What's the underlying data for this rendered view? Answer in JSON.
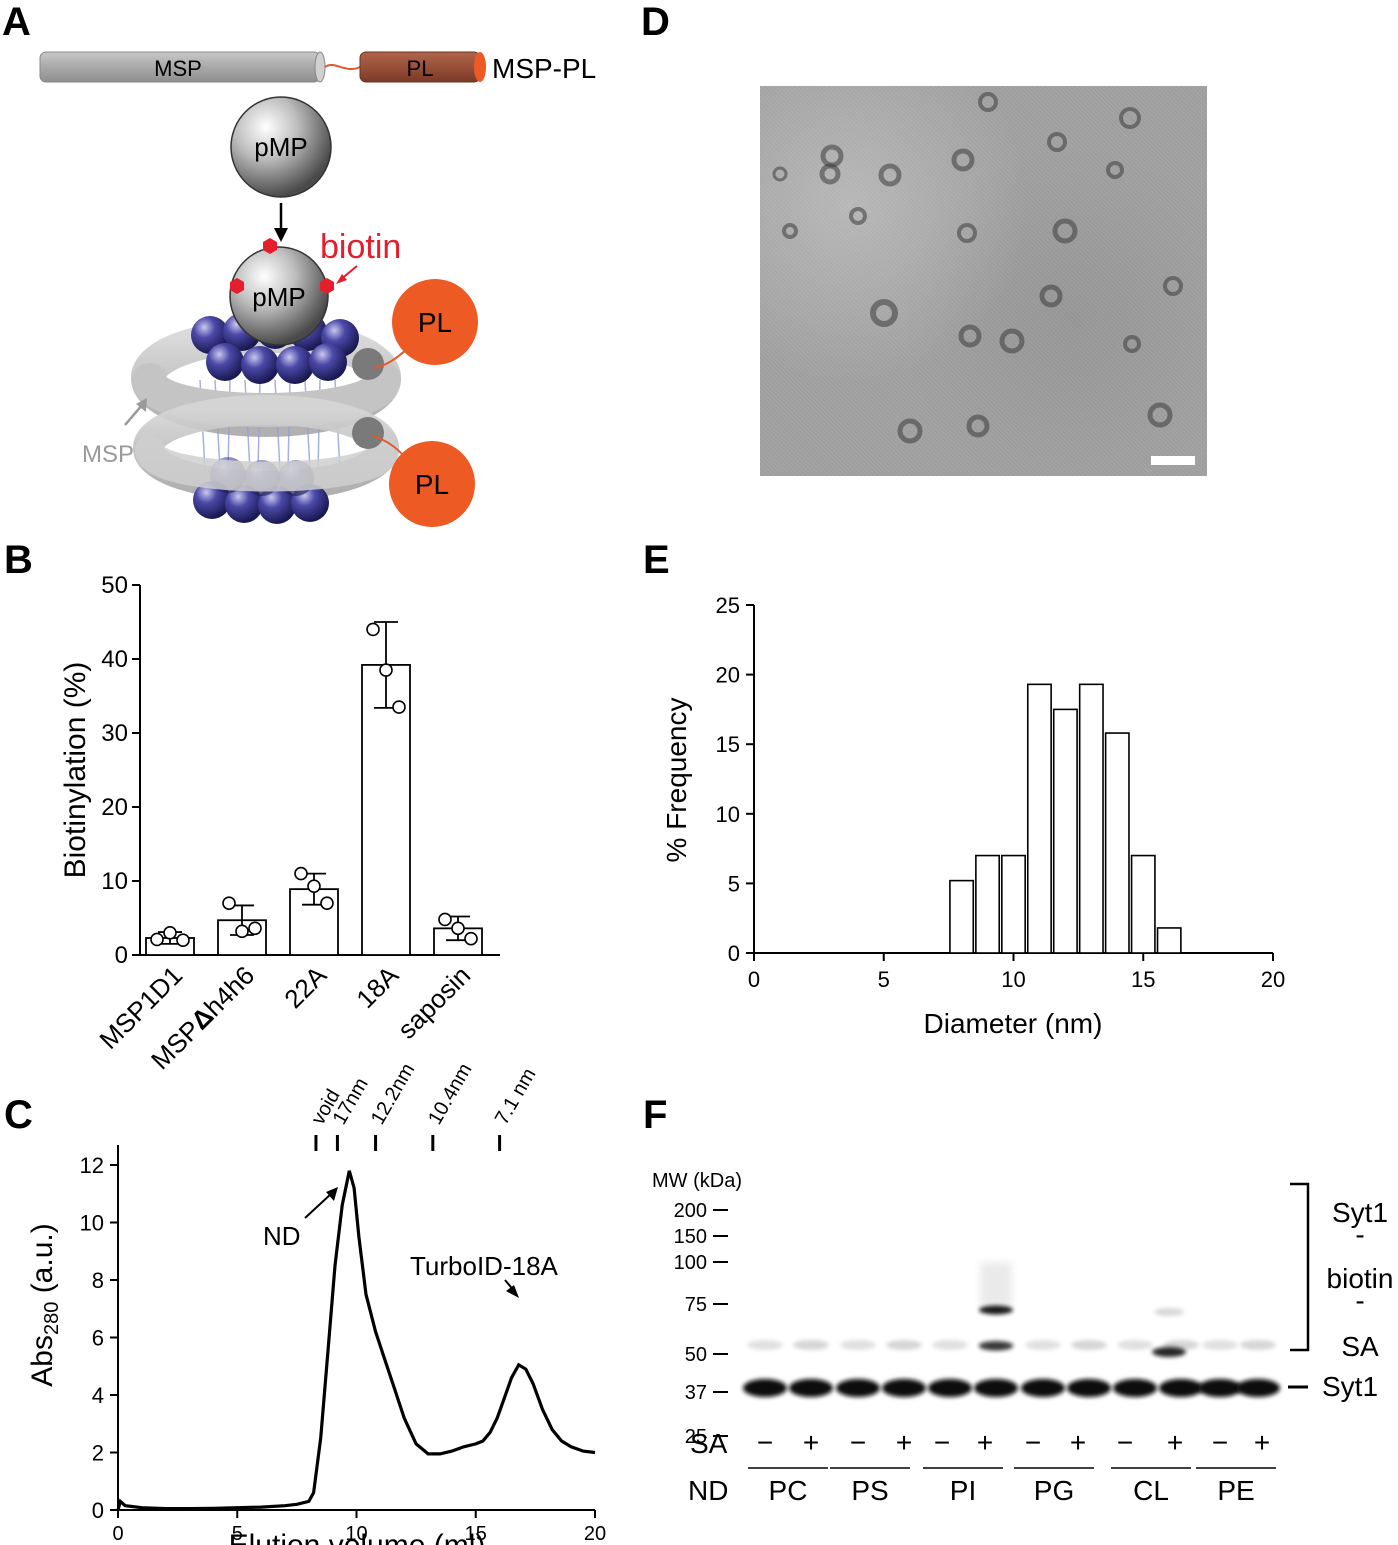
{
  "panels": {
    "a": "A",
    "b": "B",
    "c": "C",
    "d": "D",
    "e": "E",
    "f": "F"
  },
  "schematic": {
    "msp_bar_label": "MSP",
    "pl_bar_label": "PL",
    "fusion_label": "MSP-PL",
    "pmp_label": "pMP",
    "biotin_label": "biotin",
    "pl_circle_label": "PL",
    "msp_arrow_label": "MSP",
    "colors": {
      "biotin": "#e41e2b",
      "pl": "#ee5a24",
      "lipid": "#2e2d7f",
      "msp": "#bdbdbd"
    }
  },
  "panel_b": {
    "chart_data": {
      "type": "bar",
      "ylabel": "Biotinylation (%)",
      "categories": [
        "MSP1D1",
        "MSPΔh4h6",
        "22A",
        "18A",
        "saposin"
      ],
      "values": [
        2.3,
        4.7,
        8.9,
        39.2,
        3.6
      ],
      "error": [
        0.8,
        2.0,
        2.1,
        5.8,
        1.6
      ],
      "points": [
        [
          2.1,
          3.0,
          2.0
        ],
        [
          7.0,
          3.2,
          3.6
        ],
        [
          11.0,
          9.3,
          7.0
        ],
        [
          44.0,
          38.5,
          33.5
        ],
        [
          4.8,
          3.6,
          2.2
        ]
      ],
      "ylim": [
        0,
        50
      ],
      "yticks": [
        "0",
        "10",
        "20",
        "30",
        "40",
        "50"
      ]
    }
  },
  "panel_c": {
    "chart_data": {
      "type": "line",
      "xlabel": "Elution volume (ml)",
      "ylabel": "Abs280 (a.u.)",
      "ylabel_main": "Abs",
      "ylabel_sub": "280",
      "ylabel_rest": " (a.u.)",
      "xlim": [
        0,
        20
      ],
      "ylim": [
        0,
        12
      ],
      "xticks": [
        "0",
        "5",
        "10",
        "15",
        "20"
      ],
      "yticks": [
        "0",
        "2",
        "4",
        "6",
        "8",
        "10",
        "12"
      ],
      "x": [
        0,
        0.1,
        0.3,
        1,
        2,
        3,
        4,
        5,
        6,
        7,
        7.5,
        8,
        8.2,
        8.5,
        8.8,
        9.1,
        9.4,
        9.7,
        9.9,
        10.1,
        10.4,
        10.8,
        11.2,
        11.6,
        12.0,
        12.5,
        13.0,
        13.5,
        14,
        14.5,
        15,
        15.3,
        15.6,
        15.9,
        16.2,
        16.5,
        16.8,
        17.1,
        17.4,
        17.8,
        18.2,
        18.6,
        19,
        19.5,
        20
      ],
      "y": [
        0,
        0.3,
        0.15,
        0.08,
        0.05,
        0.05,
        0.06,
        0.08,
        0.1,
        0.15,
        0.2,
        0.3,
        0.6,
        2.5,
        5.5,
        8.5,
        10.6,
        11.8,
        11.2,
        9.5,
        7.5,
        6.2,
        5.2,
        4.2,
        3.2,
        2.3,
        1.95,
        1.95,
        2.05,
        2.2,
        2.3,
        2.4,
        2.7,
        3.2,
        3.9,
        4.6,
        5.05,
        4.9,
        4.4,
        3.5,
        2.8,
        2.4,
        2.2,
        2.05,
        2.0
      ],
      "annotations": {
        "nd": "ND",
        "turbo": "TurboID-18A"
      },
      "markers": [
        {
          "label": "void",
          "x": 8.3
        },
        {
          "label": "17nm",
          "x": 9.2
        },
        {
          "label": "12.2nm",
          "x": 10.8
        },
        {
          "label": "10.4nm",
          "x": 13.2
        },
        {
          "label": "7.1 nm",
          "x": 16.0
        }
      ]
    }
  },
  "panel_e": {
    "chart_data": {
      "type": "bar",
      "xlabel": "Diameter (nm)",
      "ylabel": "% Frequency",
      "xlim": [
        0,
        20
      ],
      "ylim": [
        0,
        25
      ],
      "xticks": [
        "0",
        "5",
        "10",
        "15",
        "20"
      ],
      "yticks": [
        "0",
        "5",
        "10",
        "15",
        "20",
        "25"
      ],
      "bin_centers": [
        8.0,
        9.0,
        10.0,
        11.0,
        12.0,
        13.0,
        14.0,
        15.0,
        16.0
      ],
      "values": [
        5.2,
        7.0,
        7.0,
        19.3,
        17.5,
        19.3,
        15.8,
        7.0,
        1.8
      ]
    }
  },
  "panel_f": {
    "mw_title": "MW (kDa)",
    "mw_markers": [
      {
        "label": "200",
        "kda": 200
      },
      {
        "label": "150",
        "kda": 150
      },
      {
        "label": "100",
        "kda": 100
      },
      {
        "label": "75",
        "kda": 75
      },
      {
        "label": "50",
        "kda": 50
      },
      {
        "label": "37",
        "kda": 37
      },
      {
        "label": "25",
        "kda": 25
      }
    ],
    "complex_label": [
      "Syt1",
      "-",
      "biotin",
      "-",
      "SA"
    ],
    "syt1_label": "Syt1",
    "sa_row_label": "SA",
    "nd_row_label": "ND",
    "sa_signs": [
      "−",
      "+",
      "−",
      "+",
      "−",
      "+",
      "−",
      "+",
      "−",
      "+",
      "−",
      "+"
    ],
    "groups": [
      "PC",
      "PS",
      "PI",
      "PG",
      "CL",
      "PE"
    ]
  }
}
